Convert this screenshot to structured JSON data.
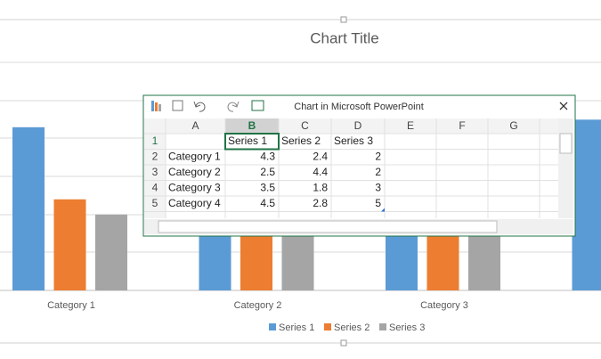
{
  "chart": {
    "title": "Chart Title",
    "series_colors": [
      "#5b9bd5",
      "#ed7d31",
      "#a5a5a5"
    ]
  },
  "sheet": {
    "window_title": "Chart in Microsoft PowerPoint",
    "columns": [
      "A",
      "B",
      "C",
      "D",
      "E",
      "F",
      "G"
    ],
    "rows": [
      {
        "number": 1,
        "cells": [
          null,
          "Series 1",
          "Series 2",
          "Series 3"
        ]
      },
      {
        "number": 2,
        "cells": [
          "Category 1",
          4.3,
          2.4,
          2
        ]
      },
      {
        "number": 3,
        "cells": [
          "Category 2",
          2.5,
          4.4,
          2
        ]
      },
      {
        "number": 4,
        "cells": [
          "Category 3",
          3.5,
          1.8,
          3
        ]
      },
      {
        "number": 5,
        "cells": [
          "Category 4",
          4.5,
          2.8,
          5
        ]
      }
    ]
  }
}
